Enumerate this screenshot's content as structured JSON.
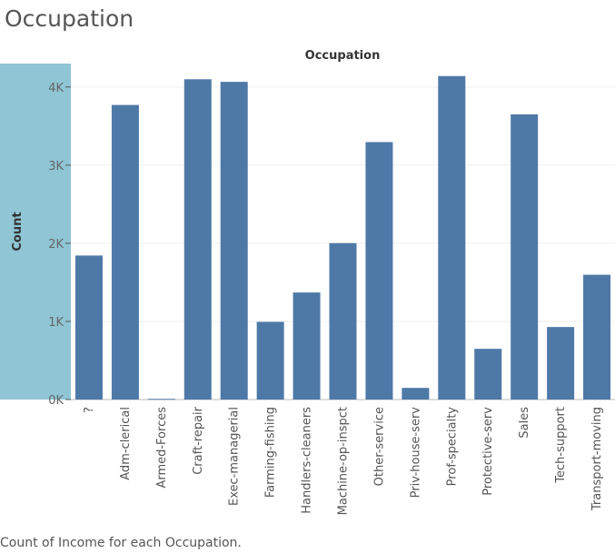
{
  "sheet_title": "Occupation",
  "caption": "Count of Income for each Occupation.",
  "colors": {
    "bar": "#4e79a7",
    "y_header_bg": "#8fc5d4",
    "grid": "#efefef",
    "axis": "#bbbbbb"
  },
  "chart_data": {
    "type": "bar",
    "title": "Occupation",
    "xlabel": "Occupation",
    "ylabel": "Count",
    "categories": [
      "?",
      "Adm-clerical",
      "Armed-Forces",
      "Craft-repair",
      "Exec-managerial",
      "Farming-fishing",
      "Handlers-cleaners",
      "Machine-op-inspct",
      "Other-service",
      "Priv-house-serv",
      "Prof-specialty",
      "Protective-serv",
      "Sales",
      "Tech-support",
      "Transport-moving"
    ],
    "values": [
      1843,
      3770,
      9,
      4099,
      4066,
      994,
      1370,
      2002,
      3295,
      149,
      4140,
      649,
      3650,
      928,
      1597
    ],
    "ylim": [
      0,
      4300
    ],
    "yticks": [
      0,
      1000,
      2000,
      3000,
      4000
    ],
    "ytick_labels": [
      "0K",
      "1K",
      "2K",
      "3K",
      "4K"
    ],
    "grid": true,
    "legend": "none"
  }
}
